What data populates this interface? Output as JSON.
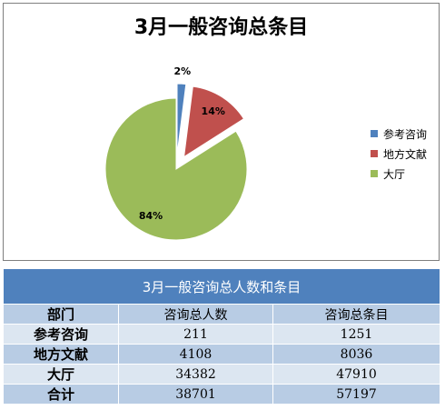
{
  "chart_data": {
    "type": "pie",
    "title": "3月一般咨询总条目",
    "categories": [
      "参考咨询",
      "地方文献",
      "大厅"
    ],
    "values": [
      2,
      14,
      84
    ],
    "data_labels": [
      "2%",
      "14%",
      "84%"
    ],
    "exploded": true,
    "legend_position": "right",
    "colors": [
      "#4f81bd",
      "#c0504d",
      "#9bbb59"
    ]
  },
  "legend": {
    "items": [
      {
        "label": "参考咨询",
        "color": "#4f81bd"
      },
      {
        "label": "地方文献",
        "color": "#c0504d"
      },
      {
        "label": "大厅",
        "color": "#9bbb59"
      }
    ]
  },
  "table": {
    "title": "3月一般咨询总人数和条目",
    "headers": [
      "部门",
      "咨询总人数",
      "咨询总条目"
    ],
    "rows": [
      [
        "参考咨询",
        "211",
        "1251"
      ],
      [
        "地方文献",
        "4108",
        "8036"
      ],
      [
        "大厅",
        "34382",
        "47910"
      ],
      [
        "合计",
        "38701",
        "57197"
      ]
    ]
  }
}
